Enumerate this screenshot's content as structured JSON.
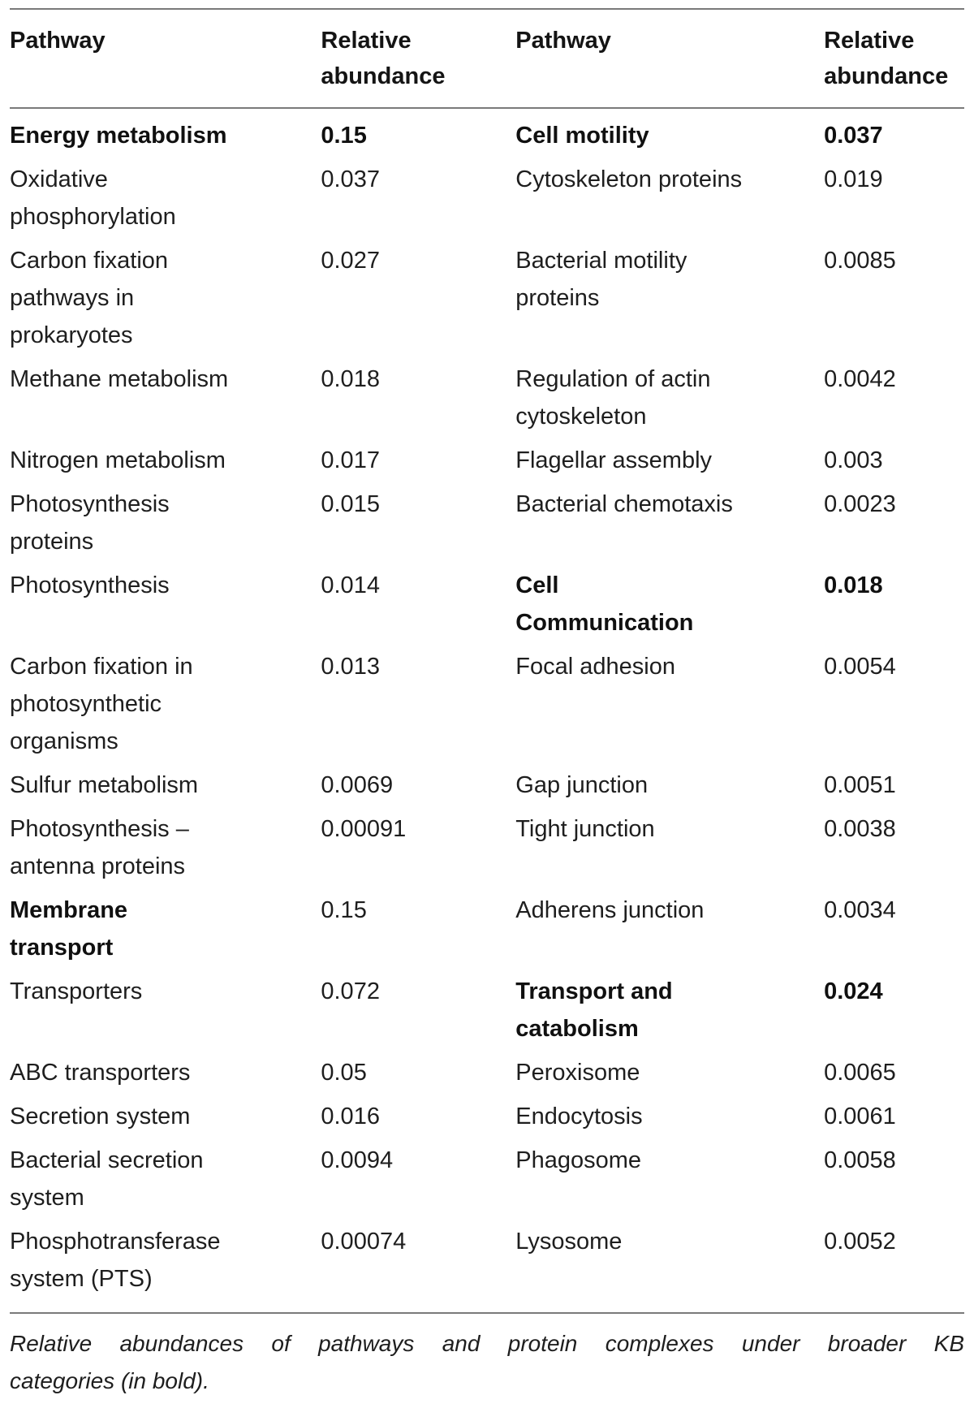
{
  "header": {
    "col1": "Pathway",
    "col2": "Relative\nabundance",
    "col3": "Pathway",
    "col4": "Relative\nabundance"
  },
  "rows": [
    {
      "p1": "Energy metabolism",
      "a1": "0.15",
      "p1_bold": true,
      "a1_bold": true,
      "p2": "Cell motility",
      "a2": "0.037",
      "p2_bold": true,
      "a2_bold": true
    },
    {
      "p1": "Oxidative\nphosphorylation",
      "a1": "0.037",
      "p1_bold": false,
      "a1_bold": false,
      "p2": "Cytoskeleton proteins",
      "a2": "0.019",
      "p2_bold": false,
      "a2_bold": false
    },
    {
      "p1": "Carbon fixation\npathways in\nprokaryotes",
      "a1": "0.027",
      "p1_bold": false,
      "a1_bold": false,
      "p2": "Bacterial motility\nproteins",
      "a2": "0.0085",
      "p2_bold": false,
      "a2_bold": false
    },
    {
      "p1": "Methane metabolism",
      "a1": "0.018",
      "p1_bold": false,
      "a1_bold": false,
      "p2": "Regulation of actin\ncytoskeleton",
      "a2": "0.0042",
      "p2_bold": false,
      "a2_bold": false
    },
    {
      "p1": "Nitrogen metabolism",
      "a1": "0.017",
      "p1_bold": false,
      "a1_bold": false,
      "p2": "Flagellar assembly",
      "a2": "0.003",
      "p2_bold": false,
      "a2_bold": false
    },
    {
      "p1": "Photosynthesis\nproteins",
      "a1": "0.015",
      "p1_bold": false,
      "a1_bold": false,
      "p2": "Bacterial chemotaxis",
      "a2": "0.0023",
      "p2_bold": false,
      "a2_bold": false
    },
    {
      "p1": "Photosynthesis",
      "a1": "0.014",
      "p1_bold": false,
      "a1_bold": false,
      "p2": "Cell\nCommunication",
      "a2": "0.018",
      "p2_bold": true,
      "a2_bold": true
    },
    {
      "p1": "Carbon fixation in\nphotosynthetic\norganisms",
      "a1": "0.013",
      "p1_bold": false,
      "a1_bold": false,
      "p2": "Focal adhesion",
      "a2": "0.0054",
      "p2_bold": false,
      "a2_bold": false
    },
    {
      "p1": "Sulfur metabolism",
      "a1": "0.0069",
      "p1_bold": false,
      "a1_bold": false,
      "p2": "Gap junction",
      "a2": "0.0051",
      "p2_bold": false,
      "a2_bold": false
    },
    {
      "p1": "Photosynthesis –\nantenna proteins",
      "a1": "0.00091",
      "p1_bold": false,
      "a1_bold": false,
      "p2": "Tight junction",
      "a2": "0.0038",
      "p2_bold": false,
      "a2_bold": false
    },
    {
      "p1": "Membrane\ntransport",
      "a1": "0.15",
      "p1_bold": true,
      "a1_bold": false,
      "p2": "Adherens junction",
      "a2": "0.0034",
      "p2_bold": false,
      "a2_bold": false
    },
    {
      "p1": "Transporters",
      "a1": "0.072",
      "p1_bold": false,
      "a1_bold": false,
      "p2": "Transport and\ncatabolism",
      "a2": "0.024",
      "p2_bold": true,
      "a2_bold": true
    },
    {
      "p1": "ABC transporters",
      "a1": "0.05",
      "p1_bold": false,
      "a1_bold": false,
      "p2": "Peroxisome",
      "a2": "0.0065",
      "p2_bold": false,
      "a2_bold": false
    },
    {
      "p1": "Secretion system",
      "a1": "0.016",
      "p1_bold": false,
      "a1_bold": false,
      "p2": "Endocytosis",
      "a2": "0.0061",
      "p2_bold": false,
      "a2_bold": false
    },
    {
      "p1": "Bacterial secretion\nsystem",
      "a1": "0.0094",
      "p1_bold": false,
      "a1_bold": false,
      "p2": "Phagosome",
      "a2": "0.0058",
      "p2_bold": false,
      "a2_bold": false
    },
    {
      "p1": "Phosphotransferase\nsystem (PTS)",
      "a1": "0.00074",
      "p1_bold": false,
      "a1_bold": false,
      "p2": "Lysosome",
      "a2": "0.0052",
      "p2_bold": false,
      "a2_bold": false
    }
  ],
  "footnote": {
    "line1": "Relative abundances of pathways and protein complexes under broader KB",
    "line2": "categories (in bold)."
  }
}
